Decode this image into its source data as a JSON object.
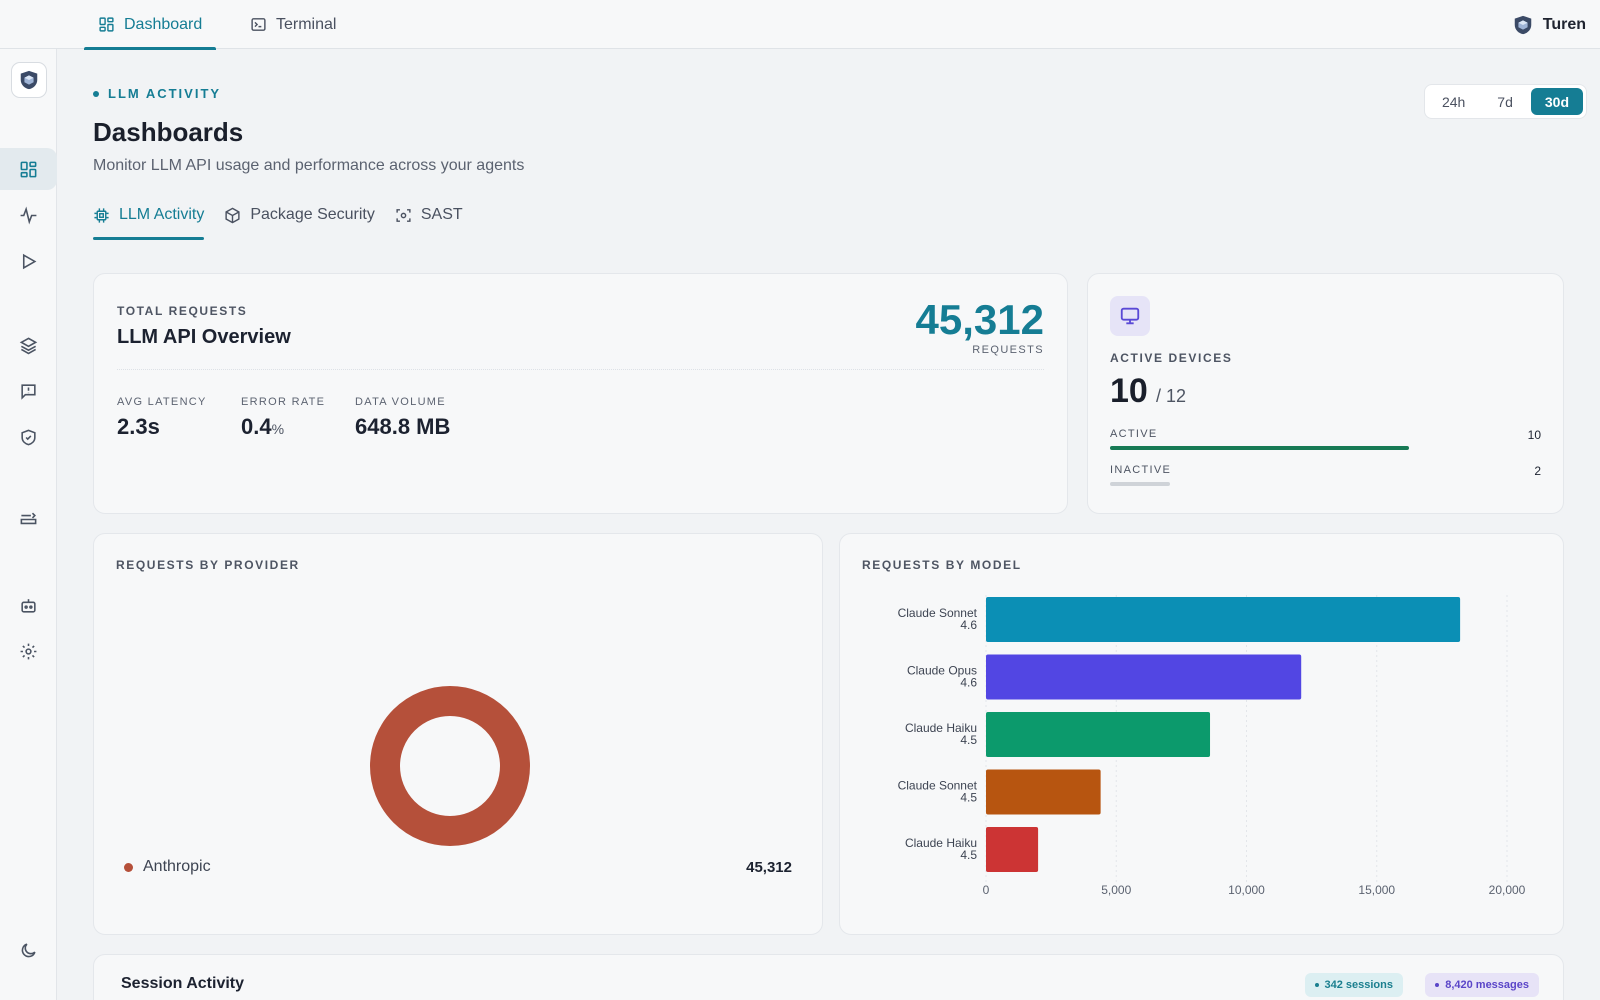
{
  "topbar": {
    "tabs": [
      {
        "label": "Dashboard",
        "icon": "dashboard-icon",
        "active": true
      },
      {
        "label": "Terminal",
        "icon": "terminal-icon",
        "active": false
      }
    ],
    "user": {
      "name": "Turen",
      "icon": "shield-cube-logo"
    }
  },
  "sidebar": {
    "items": [
      {
        "name": "dashboard",
        "icon": "grid-icon",
        "active": true
      },
      {
        "name": "activity",
        "icon": "pulse-icon"
      },
      {
        "name": "run",
        "icon": "play-icon"
      },
      {
        "name": "layers",
        "icon": "layers-icon"
      },
      {
        "name": "alerts",
        "icon": "message-alert-icon"
      },
      {
        "name": "security",
        "icon": "shield-check-icon"
      },
      {
        "name": "routing",
        "icon": "route-icon"
      },
      {
        "name": "agents",
        "icon": "bot-icon"
      },
      {
        "name": "settings",
        "icon": "gear-icon"
      },
      {
        "name": "theme",
        "icon": "moon-icon"
      }
    ]
  },
  "header": {
    "eyebrow": "LLM ACTIVITY",
    "title": "Dashboards",
    "subtitle": "Monitor LLM API usage and performance across your agents",
    "ranges": [
      "24h",
      "7d",
      "30d"
    ],
    "active_range": "30d"
  },
  "subtabs": [
    {
      "label": "LLM Activity",
      "icon": "cpu-icon",
      "active": true
    },
    {
      "label": "Package Security",
      "icon": "package-icon"
    },
    {
      "label": "SAST",
      "icon": "scan-icon"
    }
  ],
  "overview": {
    "eyebrow": "TOTAL REQUESTS",
    "title": "LLM API Overview",
    "total": "45,312",
    "total_unit": "REQUESTS",
    "metrics": [
      {
        "label": "AVG LATENCY",
        "value": "2.3s",
        "unit": ""
      },
      {
        "label": "ERROR RATE",
        "value": "0.4",
        "unit": "%"
      },
      {
        "label": "DATA VOLUME",
        "value": "648.8 MB",
        "unit": ""
      }
    ]
  },
  "devices": {
    "label": "ACTIVE DEVICES",
    "active": "10",
    "total": "/ 12",
    "rows": [
      {
        "label": "ACTIVE",
        "count": "10",
        "fraction": 0.833,
        "color": "#177a55"
      },
      {
        "label": "INACTIVE",
        "count": "2",
        "fraction": 0.167,
        "color": "#cfd3d8"
      }
    ]
  },
  "provider_card": {
    "title": "REQUESTS BY PROVIDER",
    "slices": [
      {
        "name": "Anthropic",
        "value": 45312,
        "value_label": "45,312",
        "color": "#b5503a"
      }
    ]
  },
  "model_card": {
    "title": "REQUESTS BY MODEL"
  },
  "chart_data": {
    "type": "bar",
    "orientation": "horizontal",
    "categories": [
      [
        "Claude Sonnet",
        "4.6"
      ],
      [
        "Claude Opus",
        "4.6"
      ],
      [
        "Claude Haiku",
        "4.5"
      ],
      [
        "Claude Sonnet",
        "4.5"
      ],
      [
        "Claude Haiku",
        "4.5"
      ]
    ],
    "values": [
      18200,
      12100,
      8600,
      4400,
      2000
    ],
    "colors": [
      "#0b8fb5",
      "#5246e3",
      "#0c9a6c",
      "#b75510",
      "#cc3434"
    ],
    "xlim": [
      0,
      20000
    ],
    "xticks": [
      0,
      5000,
      10000,
      15000,
      20000
    ],
    "xtick_labels": [
      "0",
      "5,000",
      "10,000",
      "15,000",
      "20,000"
    ],
    "grid": true
  },
  "session": {
    "title": "Session Activity",
    "badges": [
      {
        "label": "342 sessions",
        "color": "#1b7f8f",
        "bg": "#dceff2"
      },
      {
        "label": "8,420 messages",
        "color": "#5a45c8",
        "bg": "#e7e3f7"
      }
    ]
  }
}
